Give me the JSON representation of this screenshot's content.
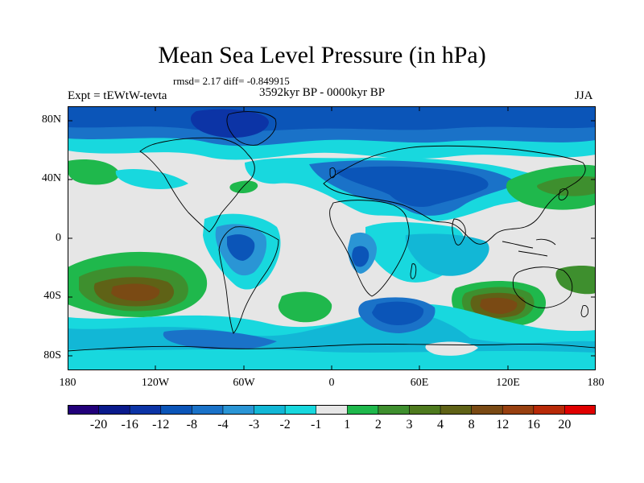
{
  "title": "Mean Sea Level Pressure (in hPa)",
  "stats": "rmsd= 2.17 diff= -0.849915",
  "experiment": "Expt = tEWtW-tevta",
  "period": "3592kyr BP - 0000kyr BP",
  "season": "JJA",
  "lat_labels": [
    "80N",
    "40N",
    "0",
    "40S",
    "80S"
  ],
  "lon_labels": [
    "180",
    "120W",
    "60W",
    "0",
    "60E",
    "120E",
    "180"
  ],
  "colorbar": {
    "colors": [
      "#22007a",
      "#0a1a8c",
      "#0c34a6",
      "#0b55b8",
      "#1a72c8",
      "#2a95d5",
      "#12b7d6",
      "#18d8de",
      "#e6e6e6",
      "#1fb84c",
      "#3e8f2e",
      "#4e7a1e",
      "#5f6216",
      "#7a4a14",
      "#984010",
      "#b82a08",
      "#e00000"
    ],
    "labels": [
      "-20",
      "-16",
      "-12",
      "-8",
      "-4",
      "-3",
      "-2",
      "-1",
      "1",
      "2",
      "3",
      "4",
      "8",
      "12",
      "16",
      "20"
    ]
  },
  "fills": {
    "neutral": "#e6e6e6",
    "neg1": "#18d8de",
    "neg2": "#12b7d6",
    "neg3": "#2a95d5",
    "neg4": "#1a72c8",
    "neg8": "#0b55b8",
    "neg12": "#0c34a6",
    "pos1": "#1fb84c",
    "pos2": "#3e8f2e",
    "pos3": "#4e7a1e",
    "pos4": "#5f6216",
    "pos8": "#7a4a14"
  }
}
